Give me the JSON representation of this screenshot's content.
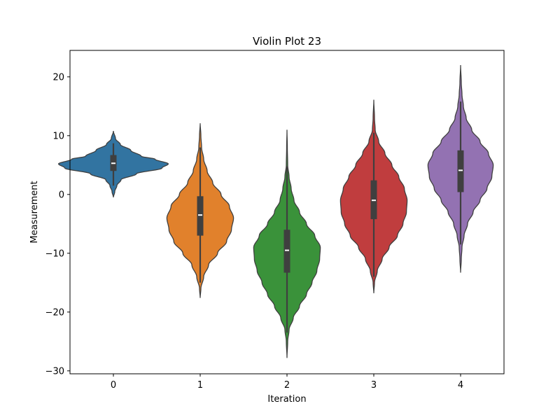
{
  "chart_data": {
    "type": "violin",
    "title": "Violin Plot 23",
    "xlabel": "Iteration",
    "ylabel": "Measurement",
    "ylim": [
      -30.5,
      24.5
    ],
    "yticks": [
      20,
      10,
      0,
      -10,
      -20,
      -30
    ],
    "ytick_labels": [
      "20",
      "10",
      "0",
      "−10",
      "−20",
      "−30"
    ],
    "categories": [
      "0",
      "1",
      "2",
      "3",
      "4"
    ],
    "series": [
      {
        "color": "#3274a1",
        "min": -0.5,
        "max": 10.8,
        "q1": 4.0,
        "median": 5.3,
        "q3": 6.7,
        "whisker_low": 1.5,
        "whisker_high": 8.7,
        "profile": [
          [
            -0.5,
            0.0
          ],
          [
            0.5,
            0.02
          ],
          [
            1.5,
            0.05
          ],
          [
            2.5,
            0.11
          ],
          [
            3.5,
            0.33
          ],
          [
            4.5,
            0.7
          ],
          [
            5.2,
            0.79
          ],
          [
            6.0,
            0.6
          ],
          [
            6.5,
            0.4
          ],
          [
            7.5,
            0.25
          ],
          [
            8.5,
            0.1
          ],
          [
            9.5,
            0.03
          ],
          [
            10.8,
            0.0
          ]
        ]
      },
      {
        "color": "#e1812c",
        "min": -17.6,
        "max": 12.1,
        "q1": -7.0,
        "median": -3.5,
        "q3": -0.3,
        "whisker_low": -15.0,
        "whisker_high": 8.0,
        "profile": [
          [
            -17.6,
            0.0
          ],
          [
            -16.0,
            0.01
          ],
          [
            -14.0,
            0.05
          ],
          [
            -12.0,
            0.12
          ],
          [
            -10.0,
            0.25
          ],
          [
            -8.0,
            0.38
          ],
          [
            -6.0,
            0.45
          ],
          [
            -4.0,
            0.48
          ],
          [
            -2.0,
            0.42
          ],
          [
            0.0,
            0.3
          ],
          [
            2.0,
            0.18
          ],
          [
            4.0,
            0.1
          ],
          [
            6.0,
            0.05
          ],
          [
            8.0,
            0.02
          ],
          [
            10.0,
            0.01
          ],
          [
            12.1,
            0.0
          ]
        ]
      },
      {
        "color": "#3a923a",
        "min": -27.8,
        "max": 11.0,
        "q1": -13.3,
        "median": -9.5,
        "q3": -6.0,
        "whisker_low": -23.5,
        "whisker_high": 4.8,
        "profile": [
          [
            -27.8,
            0.0
          ],
          [
            -25.0,
            0.01
          ],
          [
            -23.0,
            0.03
          ],
          [
            -21.0,
            0.09
          ],
          [
            -19.0,
            0.18
          ],
          [
            -17.0,
            0.28
          ],
          [
            -15.0,
            0.36
          ],
          [
            -13.0,
            0.43
          ],
          [
            -11.0,
            0.47
          ],
          [
            -9.0,
            0.48
          ],
          [
            -7.0,
            0.4
          ],
          [
            -5.0,
            0.28
          ],
          [
            -3.0,
            0.18
          ],
          [
            -1.0,
            0.1
          ],
          [
            1.0,
            0.06
          ],
          [
            3.0,
            0.03
          ],
          [
            5.0,
            0.01
          ],
          [
            8.0,
            0.005
          ],
          [
            11.0,
            0.0
          ]
        ]
      },
      {
        "color": "#c03d3e",
        "min": -16.8,
        "max": 16.1,
        "q1": -4.2,
        "median": -1.0,
        "q3": 2.4,
        "whisker_low": -14.0,
        "whisker_high": 10.5,
        "profile": [
          [
            -16.8,
            0.0
          ],
          [
            -15.0,
            0.01
          ],
          [
            -13.0,
            0.05
          ],
          [
            -11.0,
            0.12
          ],
          [
            -9.0,
            0.22
          ],
          [
            -7.0,
            0.34
          ],
          [
            -5.0,
            0.42
          ],
          [
            -3.0,
            0.47
          ],
          [
            -1.0,
            0.48
          ],
          [
            1.0,
            0.44
          ],
          [
            3.0,
            0.36
          ],
          [
            5.0,
            0.26
          ],
          [
            7.0,
            0.16
          ],
          [
            9.0,
            0.07
          ],
          [
            11.0,
            0.02
          ],
          [
            13.0,
            0.01
          ],
          [
            16.1,
            0.0
          ]
        ]
      },
      {
        "color": "#9372b2",
        "min": -13.3,
        "max": 22.0,
        "q1": 0.4,
        "median": 4.1,
        "q3": 7.5,
        "whisker_low": -8.5,
        "whisker_high": 15.8,
        "profile": [
          [
            -13.3,
            0.0
          ],
          [
            -11.0,
            0.01
          ],
          [
            -9.0,
            0.02
          ],
          [
            -7.0,
            0.05
          ],
          [
            -5.0,
            0.1
          ],
          [
            -3.0,
            0.18
          ],
          [
            -1.0,
            0.28
          ],
          [
            1.0,
            0.38
          ],
          [
            3.0,
            0.45
          ],
          [
            5.0,
            0.47
          ],
          [
            7.0,
            0.4
          ],
          [
            9.0,
            0.28
          ],
          [
            11.0,
            0.16
          ],
          [
            13.0,
            0.08
          ],
          [
            15.0,
            0.04
          ],
          [
            17.0,
            0.02
          ],
          [
            19.0,
            0.01
          ],
          [
            22.0,
            0.0
          ]
        ]
      }
    ],
    "grid": false,
    "legend": "none"
  }
}
